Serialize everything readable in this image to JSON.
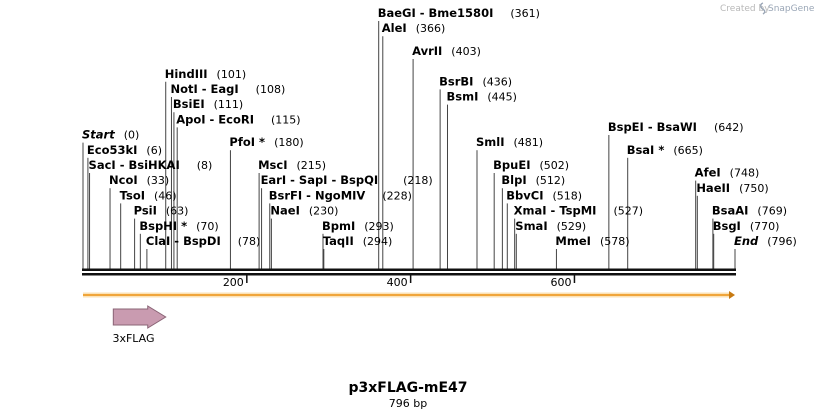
{
  "credit": {
    "prefix": "Created by",
    "brand": "SnapGene"
  },
  "map": {
    "name": "p3xFLAG-mE47",
    "length": 796,
    "length_label": "796 bp",
    "ticks": [
      200,
      400,
      600
    ],
    "feature": {
      "label": "3xFLAG",
      "start": 37,
      "end": 101,
      "color": "#c99bb0",
      "stroke": "#8a6476"
    },
    "orf": {
      "start": 0,
      "end": 796,
      "color": "#f0a53a",
      "edge": "#c77a12"
    },
    "sites": [
      {
        "name": "Start",
        "pos": "(0)",
        "bp": 0,
        "row": 0,
        "italic": true
      },
      {
        "name": "Eco53kI",
        "pos": "(6)",
        "bp": 6,
        "row": 1
      },
      {
        "name": "SacI  -  BsiHKAI",
        "pos": "(8)",
        "bp": 8,
        "row": 2
      },
      {
        "name": "NcoI",
        "pos": "(33)",
        "bp": 33,
        "row": 3
      },
      {
        "name": "TsoI",
        "pos": "(46)",
        "bp": 46,
        "row": 4
      },
      {
        "name": "PsiI",
        "pos": "(63)",
        "bp": 63,
        "row": 5
      },
      {
        "name": "BspHI *",
        "pos": "(70)",
        "bp": 70,
        "row": 6
      },
      {
        "name": "ClaI  -  BspDI",
        "pos": "(78)",
        "bp": 78,
        "row": 7
      },
      {
        "name": "HindIII",
        "pos": "(101)",
        "bp": 101,
        "row": -4
      },
      {
        "name": "NotI  -  EagI",
        "pos": "(108)",
        "bp": 108,
        "row": -3
      },
      {
        "name": "BsiEI",
        "pos": "(111)",
        "bp": 111,
        "row": -2
      },
      {
        "name": "ApoI  -  EcoRI",
        "pos": "(115)",
        "bp": 115,
        "row": -1
      },
      {
        "name": "PfoI *",
        "pos": "(180)",
        "bp": 180,
        "row": 0.5
      },
      {
        "name": "MscI",
        "pos": "(215)",
        "bp": 215,
        "row": 2
      },
      {
        "name": "EarI  -  SapI  -  BspQI",
        "pos": "(218)",
        "bp": 218,
        "row": 3
      },
      {
        "name": "BsrFI  -  NgoMIV",
        "pos": "(228)",
        "bp": 228,
        "row": 4
      },
      {
        "name": "NaeI",
        "pos": "(230)",
        "bp": 230,
        "row": 5
      },
      {
        "name": "BpmI",
        "pos": "(293)",
        "bp": 293,
        "row": 6
      },
      {
        "name": "TaqII",
        "pos": "(294)",
        "bp": 294,
        "row": 7
      },
      {
        "name": "BaeGI  -  Bme1580I",
        "pos": "(361)",
        "bp": 361,
        "row": -8
      },
      {
        "name": "AleI",
        "pos": "(366)",
        "bp": 366,
        "row": -7
      },
      {
        "name": "AvrII",
        "pos": "(403)",
        "bp": 403,
        "row": -5.5
      },
      {
        "name": "BsrBI",
        "pos": "(436)",
        "bp": 436,
        "row": -3.5
      },
      {
        "name": "BsmI",
        "pos": "(445)",
        "bp": 445,
        "row": -2.5
      },
      {
        "name": "SmlI",
        "pos": "(481)",
        "bp": 481,
        "row": 0.5
      },
      {
        "name": "BpuEI",
        "pos": "(502)",
        "bp": 502,
        "row": 2
      },
      {
        "name": "BlpI",
        "pos": "(512)",
        "bp": 512,
        "row": 3
      },
      {
        "name": "BbvCI",
        "pos": "(518)",
        "bp": 518,
        "row": 4
      },
      {
        "name": "XmaI  -  TspMI",
        "pos": "(527)",
        "bp": 527,
        "row": 5
      },
      {
        "name": "SmaI",
        "pos": "(529)",
        "bp": 529,
        "row": 6
      },
      {
        "name": "MmeI",
        "pos": "(578)",
        "bp": 578,
        "row": 7
      },
      {
        "name": "BspEI  -  BsaWI",
        "pos": "(642)",
        "bp": 642,
        "row": -0.5
      },
      {
        "name": "BsaI *",
        "pos": "(665)",
        "bp": 665,
        "row": 1
      },
      {
        "name": "AfeI",
        "pos": "(748)",
        "bp": 748,
        "row": 2.5
      },
      {
        "name": "HaeII",
        "pos": "(750)",
        "bp": 750,
        "row": 3.5
      },
      {
        "name": "BsaAI",
        "pos": "(769)",
        "bp": 769,
        "row": 5
      },
      {
        "name": "BsgI",
        "pos": "(770)",
        "bp": 770,
        "row": 6
      },
      {
        "name": "End",
        "pos": "(796)",
        "bp": 796,
        "row": 7,
        "italic": true
      }
    ]
  }
}
